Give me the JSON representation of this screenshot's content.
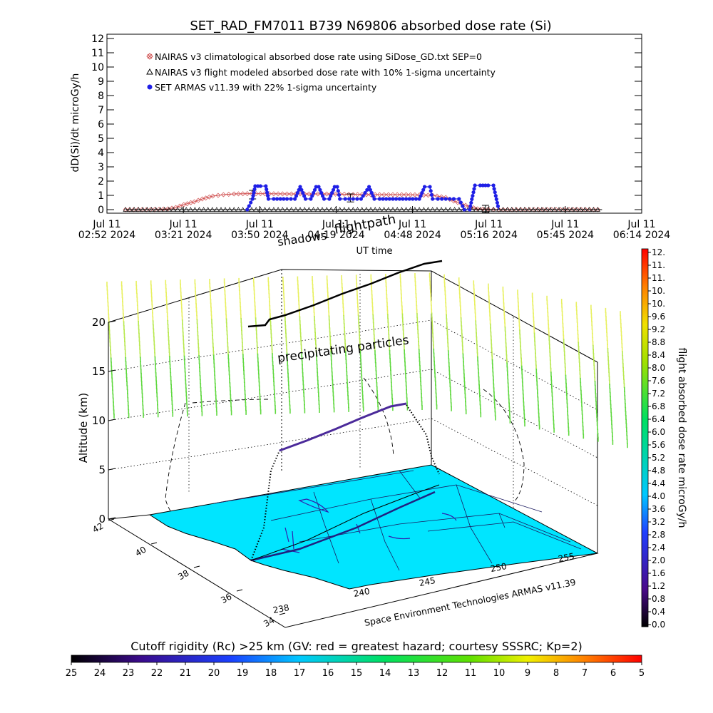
{
  "chart_data": [
    {
      "type": "line",
      "title": "SET_RAD_FM7011  B739 N69806 absorbed dose rate (Si)",
      "xlabel": "UT time",
      "ylabel": "dD(Si)/dt microGy/h",
      "ylim": [
        0,
        12
      ],
      "yticks": [
        "0",
        "1",
        "2",
        "3",
        "4",
        "5",
        "6",
        "7",
        "8",
        "9",
        "10",
        "11",
        "12"
      ],
      "xlim": [
        "02:52",
        "06:14"
      ],
      "xticks": [
        {
          "line1": "Jul 11",
          "line2": "02:52 2024"
        },
        {
          "line1": "Jul 11",
          "line2": "03:21 2024"
        },
        {
          "line1": "Jul 11",
          "line2": "03:50 2024"
        },
        {
          "line1": "Jul 11",
          "line2": "04:19 2024"
        },
        {
          "line1": "Jul 11",
          "line2": "04:48 2024"
        },
        {
          "line1": "Jul 11",
          "line2": "05:16 2024"
        },
        {
          "line1": "Jul 11",
          "line2": "05:45 2024"
        },
        {
          "line1": "Jul 11",
          "line2": "06:14 2024"
        }
      ],
      "legend_position": "top-left",
      "series": [
        {
          "name": "NAIRAS v3 climatological absorbed dose rate using SiDose_GD.txt SEP=0",
          "color": "#d05050",
          "marker": "diamond-x",
          "x": [
            "02:59",
            "03:10",
            "03:15",
            "03:18",
            "03:21",
            "03:25",
            "03:28",
            "03:32",
            "03:36",
            "03:40",
            "03:45",
            "03:50",
            "04:00",
            "04:15",
            "04:30",
            "04:45",
            "04:55",
            "05:00",
            "05:03",
            "05:06",
            "05:09",
            "05:12",
            "05:16",
            "05:20",
            "05:30",
            "05:45",
            "05:59"
          ],
          "y": [
            0,
            0,
            0.05,
            0.15,
            0.35,
            0.55,
            0.75,
            0.95,
            1.05,
            1.1,
            1.12,
            1.12,
            1.1,
            1.1,
            1.05,
            1.05,
            1.0,
            0.85,
            0.6,
            0.4,
            0.2,
            0.05,
            0.02,
            0,
            0,
            0,
            0
          ]
        },
        {
          "name": "NAIRAS v3 flight modeled absorbed dose rate with 10% 1-sigma uncertainty",
          "color": "#000000",
          "marker": "triangle",
          "x": [
            "02:59",
            "03:40",
            "03:45",
            "03:50",
            "04:10",
            "04:20",
            "04:40",
            "04:50",
            "05:00",
            "05:10",
            "05:16",
            "05:20",
            "05:59"
          ],
          "y": [
            0,
            0,
            0,
            0,
            0,
            0,
            0,
            0,
            0,
            0,
            0,
            0,
            0
          ],
          "errorbars": [
            {
              "x": "03:47",
              "y": 1.05,
              "err": 0.1
            },
            {
              "x": "04:24",
              "y": 0.82,
              "err": 0.08
            },
            {
              "x": "05:15",
              "y": 0.05,
              "err": 0.05
            }
          ]
        },
        {
          "name": "SET ARMAS v11.39 with 22% 1-sigma uncertainty",
          "color": "#1f1fe6",
          "marker": "filled-circle",
          "x": [
            "03:45",
            "03:47",
            "03:48",
            "03:49",
            "03:50",
            "03:52",
            "03:53",
            "03:55",
            "04:00",
            "04:03",
            "04:05",
            "04:07",
            "04:09",
            "04:11",
            "04:12",
            "04:14",
            "04:16",
            "04:18",
            "04:19",
            "04:20",
            "04:22",
            "04:25",
            "04:28",
            "04:31",
            "04:33",
            "04:35",
            "04:40",
            "04:45",
            "04:50",
            "04:52",
            "04:54",
            "04:55",
            "04:57",
            "05:00",
            "05:03",
            "05:05",
            "05:07",
            "05:09",
            "05:11",
            "05:13",
            "05:14",
            "05:15",
            "05:16",
            "05:18",
            "05:20"
          ],
          "y": [
            0,
            0.75,
            1.65,
            1.65,
            1.65,
            1.65,
            0.75,
            0.75,
            0.75,
            0.75,
            1.6,
            0.75,
            0.75,
            1.6,
            1.6,
            0.75,
            0.75,
            1.6,
            1.6,
            0.75,
            0.75,
            0.75,
            0.75,
            1.6,
            0.75,
            0.75,
            0.75,
            0.75,
            0.75,
            1.6,
            1.6,
            0.75,
            0.75,
            0.75,
            0.75,
            0.75,
            0,
            0,
            1.7,
            1.7,
            1.7,
            1.7,
            1.7,
            1.7,
            0
          ]
        }
      ]
    },
    {
      "type": "scatter",
      "title": "",
      "zlabel": "Altitude (km)",
      "zlim": [
        0,
        20
      ],
      "zticks": [
        "0",
        "5",
        "10",
        "15",
        "20"
      ],
      "latticks": [
        "34",
        "36",
        "38",
        "40",
        "42"
      ],
      "lonticks": [
        "238",
        "240",
        "245",
        "250",
        "255"
      ],
      "annotations": {
        "flightpath": "flightpath",
        "shadow": "shadows",
        "particles": "precipitating particles",
        "credit": "Space Environment Technologies ARMAS v11.39"
      },
      "colorbar": {
        "label": "flight absorbed dose rate microGy/h",
        "ticks": [
          "12.",
          "11.",
          "11.",
          "10.",
          "10.",
          "9.6",
          "9.2",
          "8.8",
          "8.4",
          "8.0",
          "7.6",
          "7.2",
          "6.8",
          "6.4",
          "6.0",
          "5.6",
          "5.2",
          "4.8",
          "4.4",
          "4.0",
          "3.6",
          "3.2",
          "2.8",
          "2.4",
          "2.0",
          "1.6",
          "1.2",
          "0.8",
          "0.4",
          "0.0"
        ],
        "max": 12,
        "min": 0
      },
      "surface_color": "#00e5ff"
    },
    {
      "type": "heatmap",
      "title": "Cutoff rigidity (Rc) >25 km (GV: red = greatest hazard; courtesy SSSRC; Kp=2)",
      "ticks": [
        "25",
        "24",
        "23",
        "22",
        "21",
        "20",
        "19",
        "18",
        "17",
        "16",
        "15",
        "14",
        "13",
        "12",
        "11",
        "10",
        "9",
        "8",
        "7",
        "6",
        "5"
      ],
      "range": [
        25,
        5
      ]
    }
  ]
}
